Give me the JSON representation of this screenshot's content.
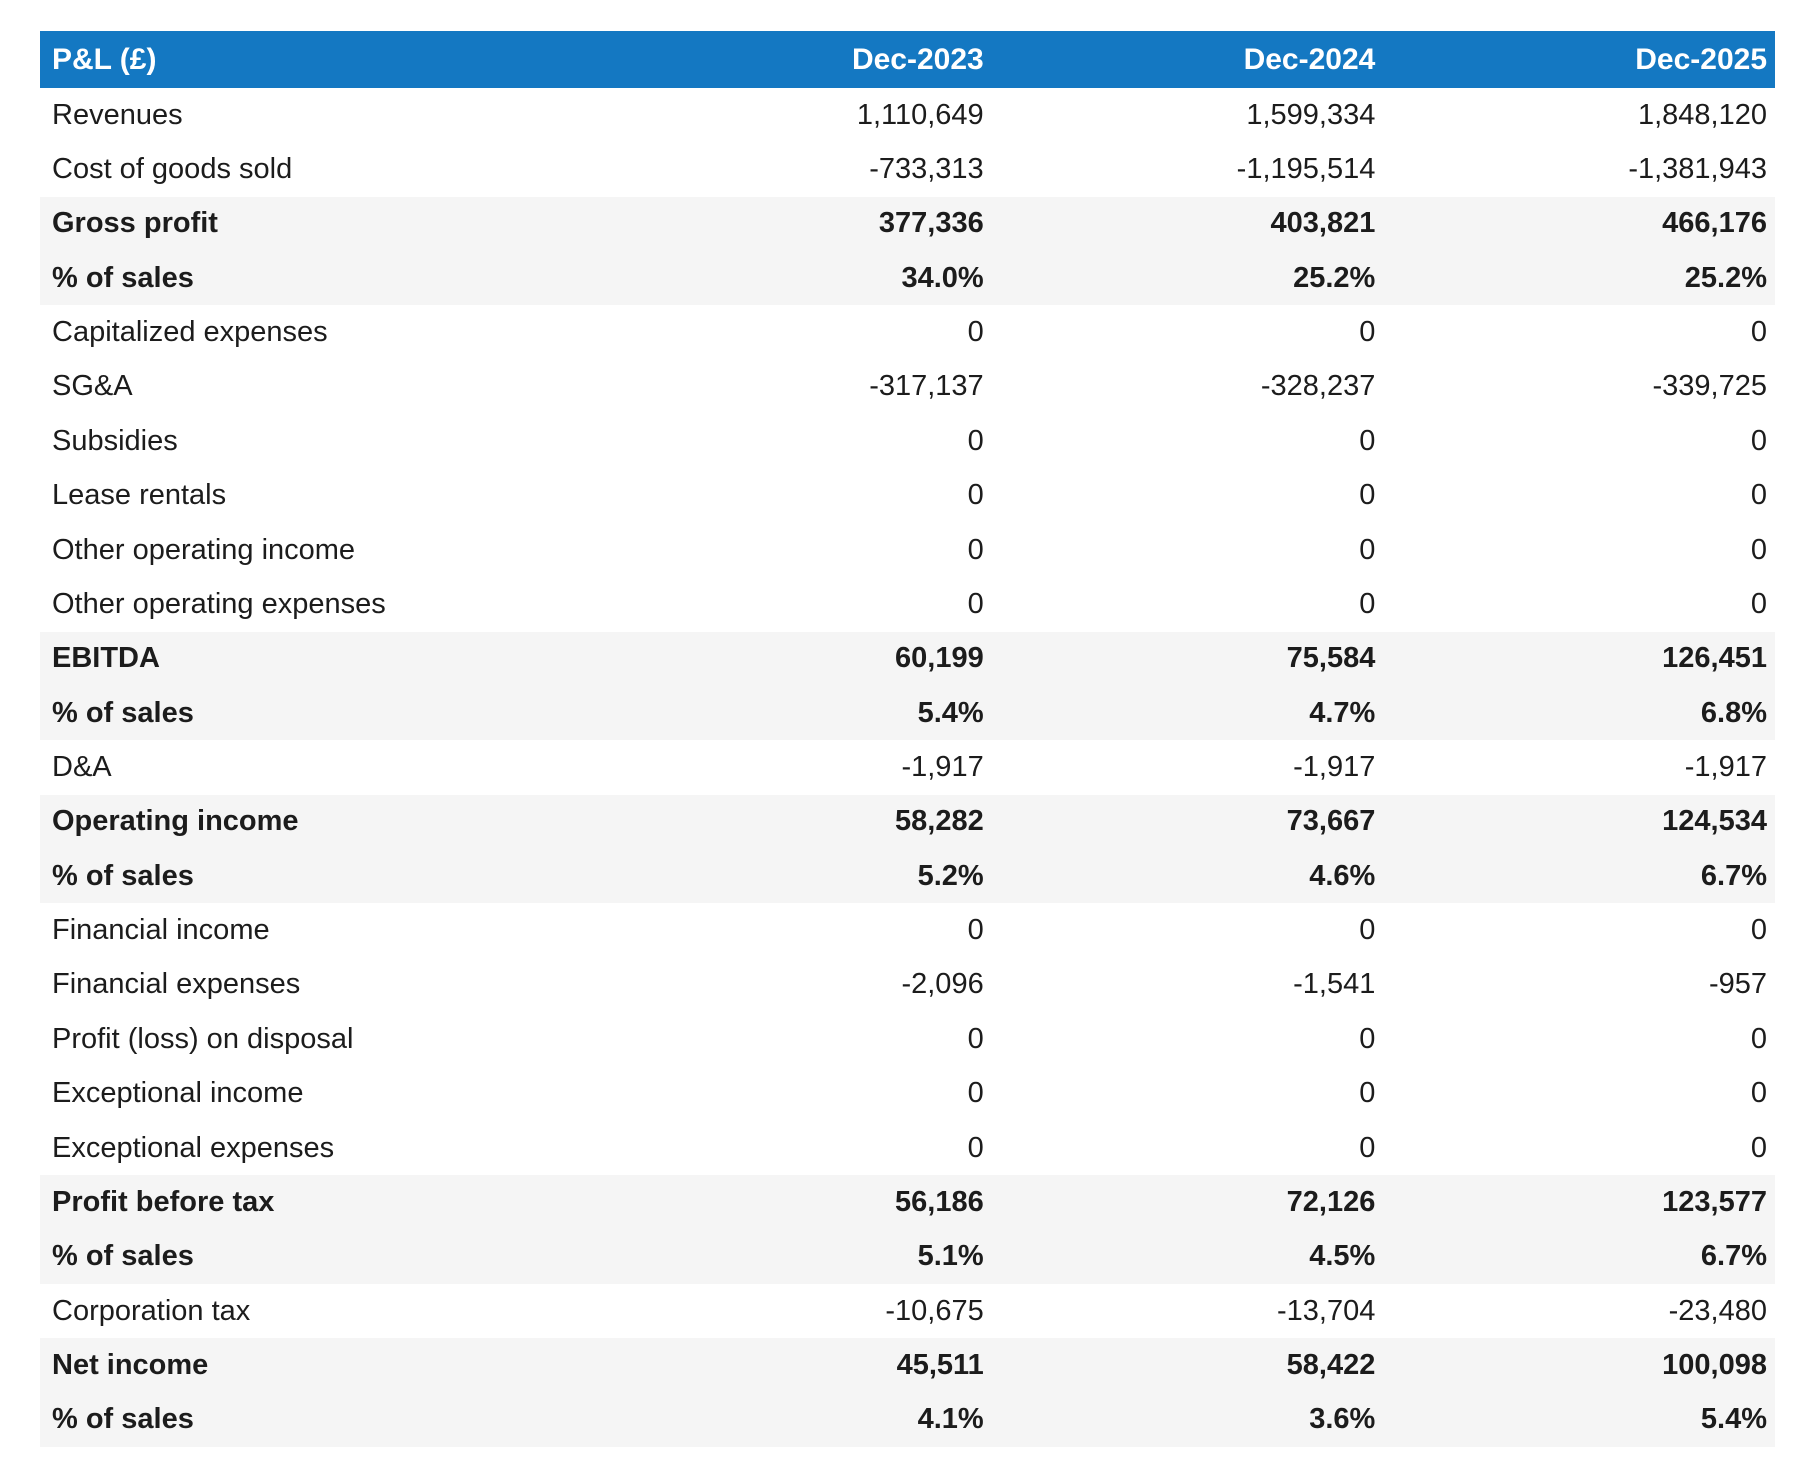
{
  "colors": {
    "header_bg": "#1478C2",
    "header_text": "#FFFFFF",
    "band_bg": "#F5F5F5",
    "text": "#1C1C1C",
    "page_bg": "#FFFFFF"
  },
  "chart_data": {
    "type": "table",
    "title": "P&L (£)",
    "currency": "£",
    "columns": [
      "Dec-2023",
      "Dec-2024",
      "Dec-2025"
    ],
    "rows": [
      {
        "label": "Revenues",
        "values": [
          "1,110,649",
          "1,599,334",
          "1,848,120"
        ],
        "emphasis": false
      },
      {
        "label": "Cost of goods sold",
        "values": [
          "-733,313",
          "-1,195,514",
          "-1,381,943"
        ],
        "emphasis": false
      },
      {
        "label": "Gross profit",
        "values": [
          "377,336",
          "403,821",
          "466,176"
        ],
        "emphasis": true
      },
      {
        "label": "% of sales",
        "values": [
          "34.0%",
          "25.2%",
          "25.2%"
        ],
        "emphasis": true
      },
      {
        "label": "Capitalized expenses",
        "values": [
          "0",
          "0",
          "0"
        ],
        "emphasis": false
      },
      {
        "label": "SG&A",
        "values": [
          "-317,137",
          "-328,237",
          "-339,725"
        ],
        "emphasis": false
      },
      {
        "label": "Subsidies",
        "values": [
          "0",
          "0",
          "0"
        ],
        "emphasis": false
      },
      {
        "label": "Lease rentals",
        "values": [
          "0",
          "0",
          "0"
        ],
        "emphasis": false
      },
      {
        "label": "Other operating income",
        "values": [
          "0",
          "0",
          "0"
        ],
        "emphasis": false
      },
      {
        "label": "Other operating expenses",
        "values": [
          "0",
          "0",
          "0"
        ],
        "emphasis": false
      },
      {
        "label": "EBITDA",
        "values": [
          "60,199",
          "75,584",
          "126,451"
        ],
        "emphasis": true
      },
      {
        "label": "% of sales",
        "values": [
          "5.4%",
          "4.7%",
          "6.8%"
        ],
        "emphasis": true
      },
      {
        "label": "D&A",
        "values": [
          "-1,917",
          "-1,917",
          "-1,917"
        ],
        "emphasis": false
      },
      {
        "label": "Operating income",
        "values": [
          "58,282",
          "73,667",
          "124,534"
        ],
        "emphasis": true
      },
      {
        "label": "% of sales",
        "values": [
          "5.2%",
          "4.6%",
          "6.7%"
        ],
        "emphasis": true
      },
      {
        "label": "Financial income",
        "values": [
          "0",
          "0",
          "0"
        ],
        "emphasis": false
      },
      {
        "label": "Financial expenses",
        "values": [
          "-2,096",
          "-1,541",
          "-957"
        ],
        "emphasis": false
      },
      {
        "label": "Profit (loss) on disposal",
        "values": [
          "0",
          "0",
          "0"
        ],
        "emphasis": false
      },
      {
        "label": "Exceptional income",
        "values": [
          "0",
          "0",
          "0"
        ],
        "emphasis": false
      },
      {
        "label": "Exceptional expenses",
        "values": [
          "0",
          "0",
          "0"
        ],
        "emphasis": false
      },
      {
        "label": "Profit before tax",
        "values": [
          "56,186",
          "72,126",
          "123,577"
        ],
        "emphasis": true
      },
      {
        "label": "% of sales",
        "values": [
          "5.1%",
          "4.5%",
          "6.7%"
        ],
        "emphasis": true
      },
      {
        "label": "Corporation tax",
        "values": [
          "-10,675",
          "-13,704",
          "-23,480"
        ],
        "emphasis": false
      },
      {
        "label": "Net income",
        "values": [
          "45,511",
          "58,422",
          "100,098"
        ],
        "emphasis": true
      },
      {
        "label": "% of sales",
        "values": [
          "4.1%",
          "3.6%",
          "5.4%"
        ],
        "emphasis": true
      }
    ]
  }
}
